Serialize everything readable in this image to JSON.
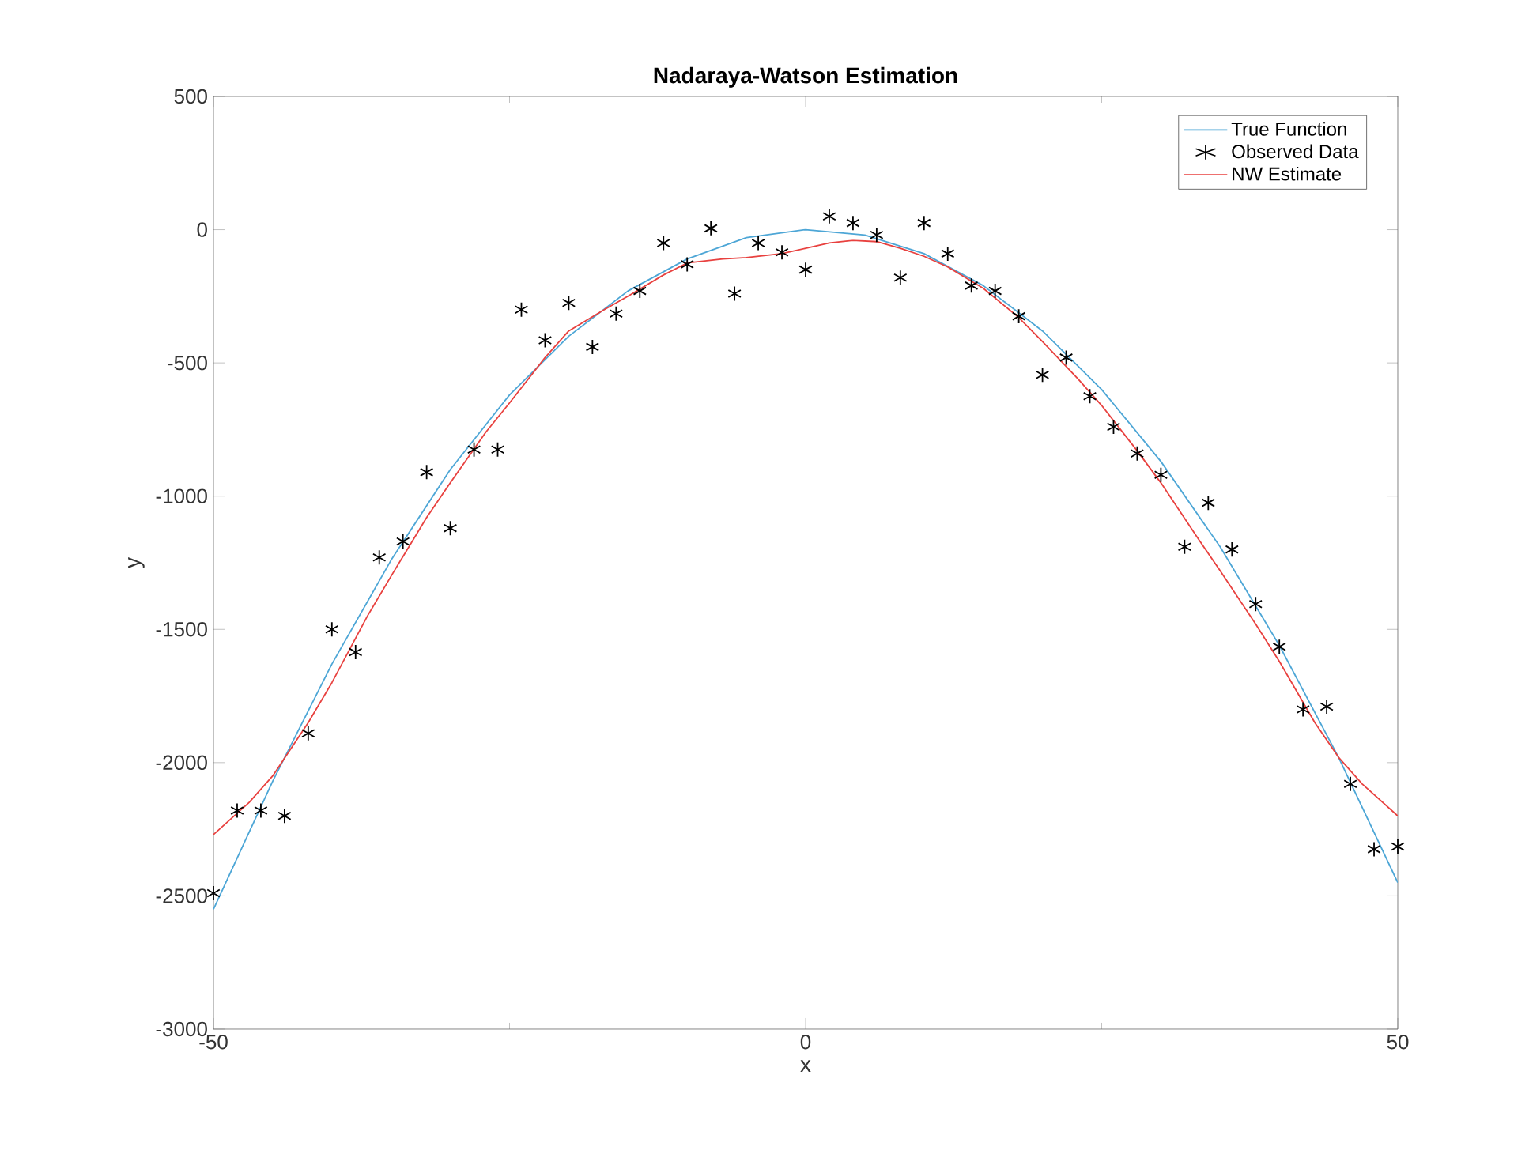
{
  "chart_data": {
    "type": "line",
    "title": "Nadaraya-Watson Estimation",
    "xlabel": "x",
    "ylabel": "y",
    "xlim": [
      -50,
      50
    ],
    "ylim": [
      -3000,
      500
    ],
    "xticks": [
      -50,
      0,
      50
    ],
    "yticks": [
      -3000,
      -2500,
      -2000,
      -1500,
      -1000,
      -500,
      0,
      500
    ],
    "grid": false,
    "legend": "top right",
    "series": [
      {
        "name": "True Function",
        "color": "#4da6d6",
        "marker": "none",
        "x": [
          -50,
          -45,
          -40,
          -35,
          -30,
          -25,
          -20,
          -15,
          -10,
          -5,
          0,
          5,
          10,
          15,
          20,
          25,
          30,
          35,
          40,
          45,
          50
        ],
        "values": [
          -2550,
          -2070,
          -1630,
          -1240,
          -900,
          -620,
          -400,
          -230,
          -110,
          -30,
          0,
          -20,
          -90,
          -210,
          -380,
          -600,
          -870,
          -1190,
          -1560,
          -1980,
          -2450
        ]
      },
      {
        "name": "Observed Data",
        "type": "scatter",
        "color": "#000000",
        "marker": "cross",
        "x": [
          -50,
          -48,
          -46,
          -44,
          -42,
          -40,
          -38,
          -36,
          -34,
          -32,
          -30,
          -28,
          -26,
          -24,
          -22,
          -20,
          -18,
          -16,
          -14,
          -12,
          -10,
          -8,
          -6,
          -4,
          -2,
          0,
          2,
          4,
          6,
          8,
          10,
          12,
          14,
          16,
          18,
          20,
          22,
          24,
          26,
          28,
          30,
          32,
          34,
          36,
          38,
          40,
          42,
          44,
          46,
          48,
          50
        ],
        "values": [
          -2490,
          -2180,
          -2180,
          -2200,
          -1890,
          -1500,
          -1585,
          -1230,
          -1170,
          -910,
          -1120,
          -825,
          -825,
          -300,
          -415,
          -275,
          -440,
          -315,
          -230,
          -50,
          -130,
          5,
          -240,
          -50,
          -85,
          -150,
          50,
          25,
          -20,
          -180,
          25,
          -90,
          -210,
          -230,
          -325,
          -545,
          -480,
          -625,
          -740,
          -840,
          -920,
          -1190,
          -1025,
          -1200,
          -1405,
          -1565,
          -1800,
          -1790,
          -2080,
          -2325,
          -2315
        ]
      },
      {
        "name": "NW Estimate",
        "color": "#e8413f",
        "marker": "none",
        "x": [
          -50,
          -47,
          -45,
          -42,
          -40,
          -37,
          -35,
          -32,
          -30,
          -27,
          -25,
          -22,
          -20,
          -17,
          -15,
          -12,
          -10,
          -7,
          -5,
          -2,
          0,
          2,
          4,
          6,
          8,
          10,
          12,
          15,
          18,
          20,
          23,
          25,
          28,
          30,
          33,
          35,
          38,
          40,
          43,
          45,
          47,
          50
        ],
        "values": [
          -2270,
          -2150,
          -2050,
          -1850,
          -1700,
          -1450,
          -1300,
          -1080,
          -950,
          -760,
          -650,
          -480,
          -380,
          -300,
          -250,
          -170,
          -125,
          -110,
          -105,
          -90,
          -70,
          -50,
          -40,
          -45,
          -70,
          -100,
          -140,
          -220,
          -330,
          -420,
          -560,
          -660,
          -830,
          -950,
          -1150,
          -1280,
          -1480,
          -1620,
          -1850,
          -1980,
          -2080,
          -2200
        ]
      }
    ]
  }
}
